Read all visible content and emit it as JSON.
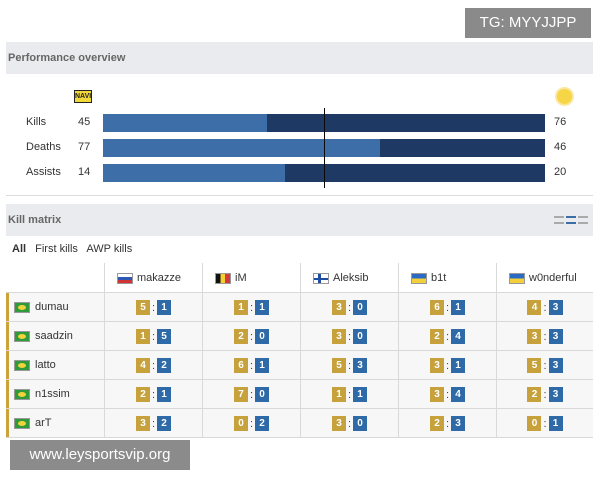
{
  "tg_badge": "TG: MYYJJPP",
  "watermark": "www.leysportsvip.org",
  "performance": {
    "title": "Performance overview",
    "left_team_logo_text": "NAVI",
    "stats": [
      {
        "label": "Kills",
        "left": "45",
        "right": "76",
        "left_share": 0.37
      },
      {
        "label": "Deaths",
        "left": "77",
        "right": "46",
        "left_share": 0.626
      },
      {
        "label": "Assists",
        "left": "14",
        "right": "20",
        "left_share": 0.412
      }
    ]
  },
  "kill_matrix": {
    "title": "Kill matrix",
    "filters": [
      "All",
      "First kills",
      "AWP kills"
    ],
    "active_filter": "All",
    "columns": [
      {
        "name": "makazze",
        "flag": "flag-ru"
      },
      {
        "name": "iM",
        "flag": "flag-be"
      },
      {
        "name": "Aleksib",
        "flag": "flag-fi"
      },
      {
        "name": "b1t",
        "flag": "flag-ua"
      },
      {
        "name": "w0nderful",
        "flag": "flag-ua"
      }
    ],
    "rows": [
      {
        "player": "dumau",
        "flag": "flag-br",
        "cells": [
          [
            "5",
            "1"
          ],
          [
            "1",
            "1"
          ],
          [
            "3",
            "0"
          ],
          [
            "6",
            "1"
          ],
          [
            "4",
            "3"
          ]
        ]
      },
      {
        "player": "saadzin",
        "flag": "flag-br",
        "cells": [
          [
            "1",
            "5"
          ],
          [
            "2",
            "0"
          ],
          [
            "3",
            "0"
          ],
          [
            "2",
            "4"
          ],
          [
            "3",
            "3"
          ]
        ]
      },
      {
        "player": "latto",
        "flag": "flag-br",
        "cells": [
          [
            "4",
            "2"
          ],
          [
            "6",
            "1"
          ],
          [
            "5",
            "3"
          ],
          [
            "3",
            "1"
          ],
          [
            "5",
            "3"
          ]
        ]
      },
      {
        "player": "n1ssim",
        "flag": "flag-br",
        "cells": [
          [
            "2",
            "1"
          ],
          [
            "7",
            "0"
          ],
          [
            "1",
            "1"
          ],
          [
            "3",
            "4"
          ],
          [
            "2",
            "3"
          ]
        ]
      },
      {
        "player": "arT",
        "flag": "flag-br",
        "cells": [
          [
            "3",
            "2"
          ],
          [
            "0",
            "2"
          ],
          [
            "3",
            "0"
          ],
          [
            "2",
            "3"
          ],
          [
            "0",
            "1"
          ]
        ]
      }
    ]
  },
  "colors": {
    "bar_left": "#3d6ea8",
    "bar_right": "#1e3a64",
    "kill_badge": "#c7a23c",
    "death_badge": "#2e6aa7"
  }
}
